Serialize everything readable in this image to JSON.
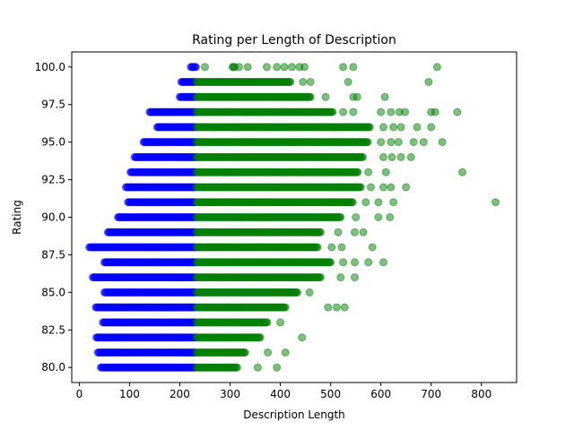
{
  "chart_data": {
    "type": "scatter",
    "title": "Rating per Length of Description",
    "xlabel": "Description Length",
    "ylabel": "Rating",
    "xlim": [
      -15,
      870
    ],
    "ylim": [
      79.0,
      101.0
    ],
    "xticks": [
      0,
      100,
      200,
      300,
      400,
      500,
      600,
      700,
      800
    ],
    "yticks": [
      80.0,
      82.5,
      85.0,
      87.5,
      90.0,
      92.5,
      95.0,
      97.5,
      100.0
    ],
    "xtick_labels": [
      "0",
      "100",
      "200",
      "300",
      "400",
      "500",
      "600",
      "700",
      "800"
    ],
    "ytick_labels": [
      "80.0",
      "82.5",
      "85.0",
      "87.5",
      "90.0",
      "92.5",
      "95.0",
      "97.5",
      "100.0"
    ],
    "grid": false,
    "series": [
      {
        "color": "#0000ff",
        "alpha": 0.5,
        "rows": [
          {
            "y": 80,
            "x_min": 43,
            "x_max": 232
          },
          {
            "y": 81,
            "x_min": 37,
            "x_max": 232
          },
          {
            "y": 82,
            "x_min": 34,
            "x_max": 232
          },
          {
            "y": 83,
            "x_min": 47,
            "x_max": 232
          },
          {
            "y": 84,
            "x_min": 33,
            "x_max": 232
          },
          {
            "y": 85,
            "x_min": 50,
            "x_max": 232
          },
          {
            "y": 86,
            "x_min": 27,
            "x_max": 232
          },
          {
            "y": 87,
            "x_min": 50,
            "x_max": 232
          },
          {
            "y": 88,
            "x_min": 20,
            "x_max": 232
          },
          {
            "y": 89,
            "x_min": 57,
            "x_max": 232
          },
          {
            "y": 90,
            "x_min": 77,
            "x_max": 232
          },
          {
            "y": 91,
            "x_min": 97,
            "x_max": 232
          },
          {
            "y": 92,
            "x_min": 93,
            "x_max": 232
          },
          {
            "y": 93,
            "x_min": 102,
            "x_max": 232
          },
          {
            "y": 94,
            "x_min": 110,
            "x_max": 232
          },
          {
            "y": 95,
            "x_min": 128,
            "x_max": 232
          },
          {
            "y": 96,
            "x_min": 155,
            "x_max": 232
          },
          {
            "y": 97,
            "x_min": 140,
            "x_max": 232
          },
          {
            "y": 98,
            "x_min": 200,
            "x_max": 232
          },
          {
            "y": 99,
            "x_min": 203,
            "x_max": 232
          },
          {
            "y": 100,
            "x_min": 222,
            "x_max": 232
          }
        ]
      },
      {
        "color": "#008000",
        "alpha": 0.5,
        "rows": [
          {
            "y": 80,
            "x_min": 234,
            "x_max": 315,
            "outliers": [
              355,
              393
            ]
          },
          {
            "y": 81,
            "x_min": 234,
            "x_max": 330,
            "outliers": [
              375,
              410
            ]
          },
          {
            "y": 82,
            "x_min": 234,
            "x_max": 360,
            "outliers": [
              443
            ]
          },
          {
            "y": 83,
            "x_min": 234,
            "x_max": 375,
            "outliers": [
              400
            ]
          },
          {
            "y": 84,
            "x_min": 234,
            "x_max": 410,
            "outliers": [
              495,
              512,
              528
            ]
          },
          {
            "y": 85,
            "x_min": 234,
            "x_max": 435,
            "outliers": [
              458
            ]
          },
          {
            "y": 86,
            "x_min": 234,
            "x_max": 480,
            "outliers": [
              520,
              548
            ]
          },
          {
            "y": 87,
            "x_min": 234,
            "x_max": 500,
            "outliers": [
              525,
              548,
              575,
              605
            ]
          },
          {
            "y": 88,
            "x_min": 234,
            "x_max": 475,
            "outliers": [
              502,
              522,
              583
            ]
          },
          {
            "y": 89,
            "x_min": 234,
            "x_max": 480,
            "outliers": [
              515,
              548,
              565
            ]
          },
          {
            "y": 90,
            "x_min": 234,
            "x_max": 520,
            "outliers": [
              550,
              595,
              618
            ]
          },
          {
            "y": 91,
            "x_min": 234,
            "x_max": 545,
            "outliers": [
              570,
              595,
              625,
              828
            ]
          },
          {
            "y": 92,
            "x_min": 234,
            "x_max": 560,
            "outliers": [
              580,
              605,
              620,
              650
            ]
          },
          {
            "y": 93,
            "x_min": 234,
            "x_max": 555,
            "outliers": [
              575,
              610,
              762
            ]
          },
          {
            "y": 94,
            "x_min": 234,
            "x_max": 565,
            "outliers": [
              605,
              622,
              640,
              660
            ]
          },
          {
            "y": 95,
            "x_min": 234,
            "x_max": 575,
            "outliers": [
              600,
              620,
              635,
              665,
              685,
              722
            ]
          },
          {
            "y": 96,
            "x_min": 234,
            "x_max": 578,
            "outliers": [
              605,
              625,
              640,
              672,
              700
            ]
          },
          {
            "y": 97,
            "x_min": 234,
            "x_max": 505,
            "outliers": [
              525,
              545,
              600,
              620,
              637,
              648,
              700,
              708,
              752
            ]
          },
          {
            "y": 98,
            "x_min": 234,
            "x_max": 460,
            "outliers": [
              490,
              545,
              553,
              608
            ]
          },
          {
            "y": 99,
            "x_min": 234,
            "x_max": 420,
            "outliers": [
              445,
              460,
              535,
              695
            ]
          },
          {
            "y": 100,
            "x_min": 305,
            "x_max": 310,
            "outliers": [
              250,
              318,
              335,
              373,
              393,
              408,
              423,
              438,
              448,
              525,
              545,
              712
            ]
          }
        ]
      }
    ]
  }
}
